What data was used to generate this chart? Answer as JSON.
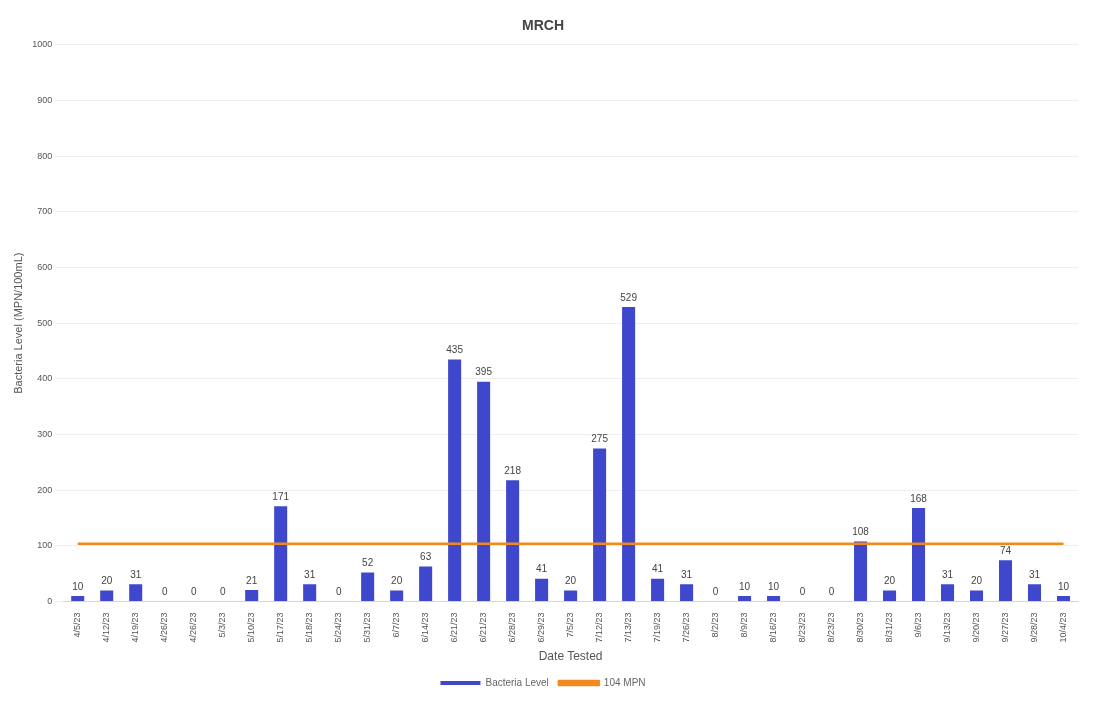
{
  "chart_data": {
    "type": "bar",
    "title": "MRCH",
    "xlabel": "Date Tested",
    "ylabel": "Bacteria Level (MPN/100mL)",
    "categories": [
      "4/5/23",
      "4/12/23",
      "4/19/23",
      "4/26/23",
      "4/26/23",
      "5/3/23",
      "5/10/23",
      "5/17/23",
      "5/18/23",
      "5/24/23",
      "5/31/23",
      "6/7/23",
      "6/14/23",
      "6/21/23",
      "6/21/23",
      "6/28/23",
      "6/29/23",
      "7/5/23",
      "7/12/23",
      "7/13/23",
      "7/19/23",
      "7/26/23",
      "8/2/23",
      "8/9/23",
      "8/16/23",
      "8/23/23",
      "8/23/23",
      "8/30/23",
      "8/31/23",
      "9/6/23",
      "9/13/23",
      "9/20/23",
      "9/27/23",
      "9/28/23",
      "10/4/23"
    ],
    "series": [
      {
        "name": "Bacteria Level",
        "color": "#3f48cc",
        "values": [
          10,
          20,
          31,
          0,
          0,
          0,
          21,
          171,
          31,
          0,
          52,
          20,
          63,
          435,
          395,
          218,
          41,
          20,
          275,
          529,
          41,
          31,
          0,
          10,
          10,
          0,
          0,
          108,
          20,
          168,
          31,
          20,
          74,
          31,
          10
        ],
        "value_labels": [
          "10",
          "20",
          "31",
          "0",
          "0",
          "0",
          "21",
          "171",
          "31",
          "0",
          "52",
          "20",
          "63",
          "435",
          "395",
          "218",
          "41",
          "20",
          "275",
          "529",
          "41",
          "31",
          "0",
          "10",
          "10",
          "0",
          "0",
          "108",
          "20",
          "168",
          "31",
          "20",
          "74",
          "31",
          "10"
        ]
      },
      {
        "name": "104 MPN",
        "type": "line",
        "color": "#f08a1e",
        "marker": "none",
        "values": [
          104,
          104,
          104,
          104,
          104,
          104,
          104,
          104,
          104,
          104,
          104,
          104,
          104,
          104,
          104,
          104,
          104,
          104,
          104,
          104,
          104,
          104,
          104,
          104,
          104,
          104,
          104,
          104,
          104,
          104,
          104,
          104,
          104,
          104,
          104
        ]
      }
    ],
    "ylim": [
      0,
      1000
    ],
    "yticks": [
      0,
      100,
      200,
      300,
      400,
      500,
      600,
      700,
      800,
      900,
      1000
    ],
    "grid": "y",
    "legend": "bottom"
  }
}
